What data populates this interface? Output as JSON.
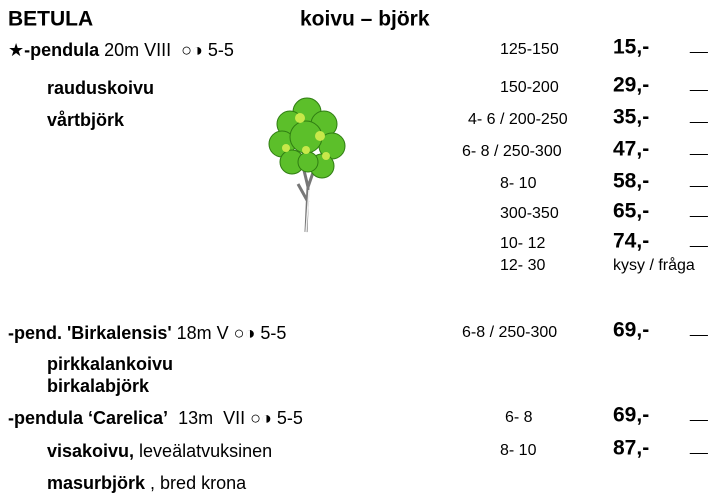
{
  "header": {
    "genus": "BETULA",
    "common": "koivu – björk"
  },
  "sections": [
    {
      "star": "★",
      "name": "-pendula",
      "info": " 20m VIII  ○◑ 5-5",
      "common": [
        {
          "name": "rauduskoivu"
        },
        {
          "name": "vårtbjörk"
        }
      ],
      "offers": [
        {
          "size": "125-150",
          "price": "15,-",
          "order": "__"
        },
        {
          "size": "150-200",
          "price": "29,-",
          "order": "__"
        },
        {
          "size": "4- 6 / 200-250",
          "price": "35,-",
          "order": "__"
        },
        {
          "size": "6- 8 / 250-300",
          "price": "47,-",
          "order": "__"
        },
        {
          "size": "8- 10",
          "price": "58,-",
          "order": "__"
        },
        {
          "size": "300-350",
          "price": "65,-",
          "order": "__"
        },
        {
          "size": "10- 12",
          "price": "74,-",
          "order": "__"
        },
        {
          "size": "12- 30",
          "ask": "kysy / fråga"
        }
      ]
    },
    {
      "name": "-pend. 'Birkalensis'",
      "info": " 18m V ○◑ 5-5",
      "common": [
        {
          "name": "pirkkalankoivu"
        },
        {
          "name": "birkalabjörk"
        }
      ],
      "offers": [
        {
          "size": "6-8 / 250-300",
          "price": "69,-",
          "order": "__"
        }
      ]
    },
    {
      "name": "-pendula ‘Carelica’",
      "info": "  13m  VII ○◑ 5-5",
      "common": [
        {
          "name": "visakoivu,",
          "note": " leveälatvuksinen"
        },
        {
          "name": "masurbjörk",
          "note": " , bred krona"
        }
      ],
      "offers": [
        {
          "size": "6- 8",
          "price": "69,-",
          "order": "__"
        },
        {
          "size": "8- 10",
          "price": "87,-",
          "order": "__"
        }
      ]
    }
  ]
}
